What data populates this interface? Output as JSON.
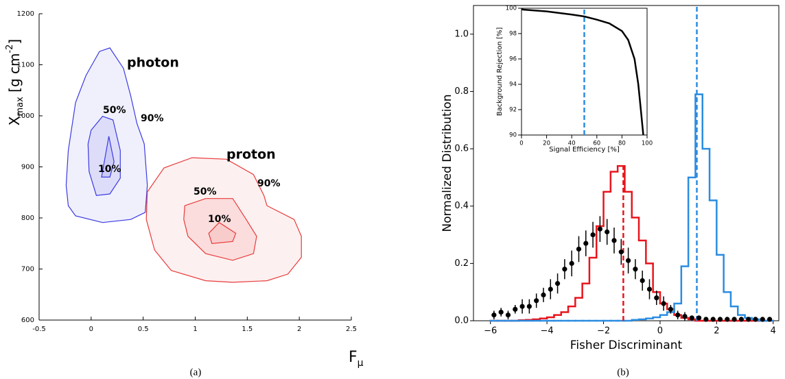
{
  "chart_data": [
    {
      "type": "contour",
      "caption": "(a)",
      "x_label": {
        "main": "F",
        "sub": "μ"
      },
      "y_label": {
        "main": "X",
        "sub": "max",
        "unit": " [g cm",
        "sup": "-2",
        "close": "]"
      },
      "xlim": [
        -0.5,
        2.5
      ],
      "ylim": [
        600,
        1200
      ],
      "xticks": [
        -0.5,
        0,
        0.5,
        1,
        1.5,
        2,
        2.5
      ],
      "yticks": [
        600,
        700,
        800,
        900,
        1000,
        1100,
        1200
      ],
      "groups": [
        {
          "name": "photon",
          "color": "#3a3ae0",
          "label_color": "#1c1c9e",
          "contours": [
            {
              "label": "90%",
              "x": [
                -0.22,
                -0.24,
                -0.22,
                -0.15,
                -0.05,
                0.08,
                0.18,
                0.31,
                0.38,
                0.44,
                0.51,
                0.54,
                0.52,
                0.38,
                0.11,
                -0.15
              ],
              "y": [
                824,
                864,
                932,
                1026,
                1079,
                1126,
                1133,
                1093,
                1039,
                985,
                945,
                864,
                811,
                797,
                791,
                804
              ]
            },
            {
              "label": "50%",
              "x": [
                0,
                0.11,
                0.21,
                0.28,
                0.28,
                0.18,
                0.05,
                -0.02,
                -0.03
              ],
              "y": [
                972,
                999,
                992,
                932,
                878,
                847,
                844,
                891,
                945
              ]
            },
            {
              "label": "10%",
              "x": [
                0.1,
                0.17,
                0.22,
                0.18
              ],
              "y": [
                880,
                960,
                910,
                880
              ]
            }
          ]
        },
        {
          "name": "proton",
          "color": "#e83a3a",
          "label_color": "#a31414",
          "contours": [
            {
              "label": "90%",
              "x": [
                0.54,
                0.7,
                0.97,
                1.3,
                1.56,
                1.66,
                1.69,
                1.95,
                2.02,
                2.02,
                1.89,
                1.69,
                1.36,
                1.1,
                0.77,
                0.61,
                0.53
              ],
              "y": [
                851,
                898,
                918,
                915,
                885,
                844,
                824,
                797,
                764,
                723,
                690,
                677,
                674,
                677,
                697,
                737,
                797
              ]
            },
            {
              "label": "50%",
              "x": [
                0.9,
                1.1,
                1.36,
                1.49,
                1.59,
                1.56,
                1.36,
                1.1,
                0.93,
                0.89
              ],
              "y": [
                824,
                838,
                838,
                797,
                764,
                730,
                717,
                730,
                764,
                797
              ]
            },
            {
              "label": "10%",
              "x": [
                1.13,
                1.23,
                1.39,
                1.36,
                1.16
              ],
              "y": [
                770,
                791,
                770,
                754,
                750
              ]
            }
          ]
        }
      ]
    },
    {
      "type": "histogram",
      "caption": "(b)",
      "x_label": "Fisher Discriminant",
      "y_label": "Normalized Distribution",
      "xlim": [
        -6.6,
        4.2
      ],
      "ylim": [
        0,
        1.1
      ],
      "xticks": [
        {
          "value": -6,
          "label": "−6"
        },
        {
          "value": -4,
          "label": "−4"
        },
        {
          "value": -2,
          "label": "−2"
        },
        0,
        2,
        4
      ],
      "yticks": [
        {
          "value": 0,
          "label": "0.0"
        },
        {
          "value": 0.2,
          "label": "0.2"
        },
        {
          "value": 0.4,
          "label": "0.4"
        },
        {
          "value": 0.6,
          "label": "0.6"
        },
        {
          "value": 0.8,
          "label": "0.8"
        },
        {
          "value": 1,
          "label": "1.0"
        }
      ],
      "bins": [
        -6,
        -5.75,
        -5.5,
        -5.25,
        -5,
        -4.75,
        -4.5,
        -4.25,
        -4,
        -3.75,
        -3.5,
        -3.25,
        -3,
        -2.75,
        -2.5,
        -2.25,
        -2,
        -1.75,
        -1.5,
        -1.25,
        -1,
        -0.75,
        -0.5,
        -0.25,
        0,
        0.25,
        0.5,
        0.75,
        1,
        1.25,
        1.5,
        1.75,
        2,
        2.25,
        2.5,
        2.75,
        3,
        3.25,
        3.5,
        3.75,
        4
      ],
      "series": [
        {
          "color": "#e8141c",
          "values": [
            0,
            0,
            0,
            0,
            0.002,
            0.003,
            0.005,
            0.008,
            0.012,
            0.02,
            0.03,
            0.05,
            0.08,
            0.13,
            0.22,
            0.33,
            0.45,
            0.52,
            0.54,
            0.45,
            0.36,
            0.28,
            0.2,
            0.1,
            0.06,
            0.04,
            0.02,
            0.01,
            0.005,
            0,
            0,
            0,
            0,
            0,
            0,
            0,
            0,
            0,
            0,
            0
          ]
        },
        {
          "color": "#2a8ce0",
          "values": [
            0,
            0,
            0,
            0,
            0,
            0,
            0,
            0,
            0,
            0,
            0,
            0,
            0,
            0,
            0,
            0,
            0,
            0,
            0,
            0,
            0.003,
            0.005,
            0.008,
            0.012,
            0.02,
            0.03,
            0.06,
            0.19,
            0.5,
            0.79,
            0.6,
            0.42,
            0.23,
            0.1,
            0.05,
            0.02,
            0.01,
            0.005,
            0,
            0
          ]
        }
      ],
      "points": {
        "color": "#000000",
        "x": [
          -5.875,
          -5.625,
          -5.375,
          -5.125,
          -4.875,
          -4.625,
          -4.375,
          -4.125,
          -3.875,
          -3.625,
          -3.375,
          -3.125,
          -2.875,
          -2.625,
          -2.375,
          -2.125,
          -1.875,
          -1.625,
          -1.375,
          -1.125,
          -0.875,
          -0.625,
          -0.375,
          -0.125,
          0.125,
          0.375,
          0.625,
          0.875,
          1.125,
          1.375,
          1.625,
          1.875,
          2.125,
          2.375,
          2.625,
          2.875,
          3.125,
          3.375,
          3.625,
          3.875
        ],
        "values": [
          0.02,
          0.03,
          0.02,
          0.04,
          0.05,
          0.05,
          0.07,
          0.09,
          0.11,
          0.13,
          0.18,
          0.2,
          0.25,
          0.27,
          0.3,
          0.32,
          0.31,
          0.28,
          0.24,
          0.21,
          0.18,
          0.14,
          0.11,
          0.08,
          0.06,
          0.04,
          0.02,
          0.015,
          0.01,
          0.01,
          0.005,
          0.005,
          0.005,
          0.005,
          0.005,
          0.005,
          0.005,
          0.005,
          0.005,
          0.005
        ],
        "errors": [
          0.015,
          0.015,
          0.015,
          0.015,
          0.025,
          0.025,
          0.025,
          0.025,
          0.035,
          0.035,
          0.035,
          0.045,
          0.045,
          0.045,
          0.045,
          0.045,
          0.045,
          0.045,
          0.045,
          0.045,
          0.035,
          0.035,
          0.035,
          0.025,
          0.025,
          0.015,
          0.015,
          0.015,
          0.008,
          0.008,
          0.008,
          0.008,
          0.008,
          0.008,
          0.008,
          0.008,
          0.008,
          0.008,
          0.008,
          0.008
        ]
      },
      "vlines": [
        {
          "x": -1.3,
          "ymax": 0.54,
          "color": "#e8141c"
        },
        {
          "x": 1.3,
          "ymax": 1.1,
          "color": "#2a8ce0"
        }
      ]
    },
    {
      "type": "line",
      "x_label": "Signal Efficiency [%]",
      "y_label": "Background Rejection [%]",
      "xlim": [
        0,
        100
      ],
      "ylim": [
        90,
        100
      ],
      "xticks": [
        0,
        20,
        40,
        60,
        80,
        100
      ],
      "yticks": [
        90,
        92,
        94,
        96,
        98,
        100
      ],
      "series": [
        {
          "color": "#000000",
          "x": [
            0,
            20,
            40,
            50,
            60,
            70,
            80,
            85,
            90,
            93,
            95,
            97
          ],
          "values": [
            99.9,
            99.75,
            99.5,
            99.35,
            99.1,
            98.8,
            98.2,
            97.5,
            96,
            94,
            92,
            90
          ]
        }
      ],
      "vlines": [
        {
          "x": 50,
          "ymax": 100,
          "color": "#2a8ce0"
        }
      ]
    }
  ]
}
